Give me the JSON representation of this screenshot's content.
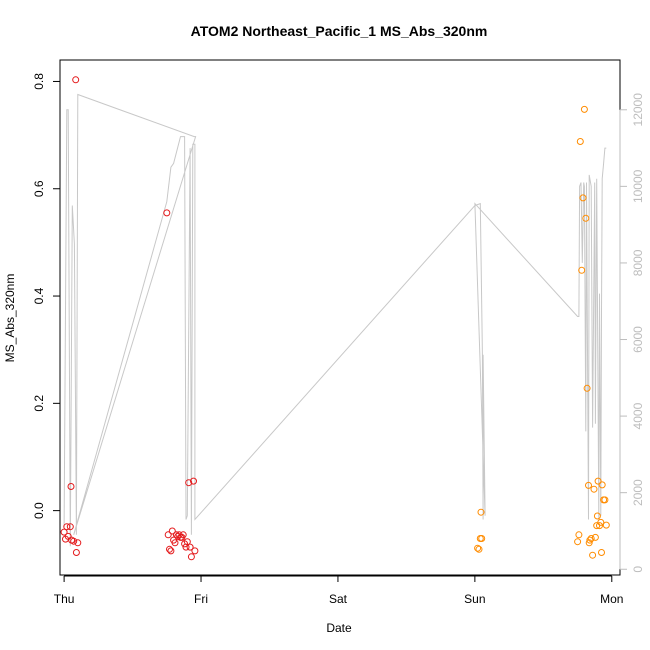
{
  "chart_data": {
    "type": "scatter",
    "title": "ATOM2 Northeast_Pacific_1 MS_Abs_320nm",
    "xlabel": "Date",
    "ylabel": "MS_Abs_320nm",
    "x_unit": "days",
    "xlim": [
      -0.03,
      4.06
    ],
    "ylim": [
      -0.12,
      0.84
    ],
    "y2lim": [
      -150,
      13300
    ],
    "x_ticks": [
      {
        "value": 0,
        "label": "Thu"
      },
      {
        "value": 1,
        "label": "Fri"
      },
      {
        "value": 2,
        "label": "Sat"
      },
      {
        "value": 3,
        "label": "Sun"
      },
      {
        "value": 4,
        "label": "Mon"
      }
    ],
    "y_ticks": [
      {
        "value": 0.0,
        "label": "0.0"
      },
      {
        "value": 0.2,
        "label": "0.2"
      },
      {
        "value": 0.4,
        "label": "0.4"
      },
      {
        "value": 0.6,
        "label": "0.6"
      },
      {
        "value": 0.8,
        "label": "0.8"
      }
    ],
    "y2_ticks": [
      {
        "value": 0,
        "label": "0"
      },
      {
        "value": 2000,
        "label": "2000"
      },
      {
        "value": 4000,
        "label": "4000"
      },
      {
        "value": 6000,
        "label": "6000"
      },
      {
        "value": 8000,
        "label": "8000"
      },
      {
        "value": 10000,
        "label": "10000"
      },
      {
        "value": 12000,
        "label": "12000"
      }
    ],
    "grid": false,
    "colors": {
      "series_1": "#e41a1c",
      "series_2": "#ff8c00",
      "secondary_line": "#c8c8c8"
    },
    "series": [
      {
        "marker": "open-circle",
        "color": "#e41a1c",
        "points": [
          {
            "x": 0.0,
            "y": -0.04
          },
          {
            "x": 0.01,
            "y": -0.053
          },
          {
            "x": 0.02,
            "y": -0.03
          },
          {
            "x": 0.03,
            "y": -0.048
          },
          {
            "x": 0.045,
            "y": -0.03
          },
          {
            "x": 0.05,
            "y": 0.045
          },
          {
            "x": 0.055,
            "y": -0.055
          },
          {
            "x": 0.07,
            "y": -0.057
          },
          {
            "x": 0.085,
            "y": 0.803
          },
          {
            "x": 0.09,
            "y": -0.078
          },
          {
            "x": 0.1,
            "y": -0.06
          },
          {
            "x": 0.75,
            "y": 0.555
          },
          {
            "x": 0.76,
            "y": -0.045
          },
          {
            "x": 0.77,
            "y": -0.072
          },
          {
            "x": 0.78,
            "y": -0.075
          },
          {
            "x": 0.79,
            "y": -0.038
          },
          {
            "x": 0.8,
            "y": -0.055
          },
          {
            "x": 0.81,
            "y": -0.06
          },
          {
            "x": 0.82,
            "y": -0.045
          },
          {
            "x": 0.83,
            "y": -0.048
          },
          {
            "x": 0.84,
            "y": -0.045
          },
          {
            "x": 0.85,
            "y": -0.05
          },
          {
            "x": 0.86,
            "y": -0.05
          },
          {
            "x": 0.87,
            "y": -0.045
          },
          {
            "x": 0.88,
            "y": -0.062
          },
          {
            "x": 0.89,
            "y": -0.068
          },
          {
            "x": 0.9,
            "y": -0.058
          },
          {
            "x": 0.91,
            "y": 0.052
          },
          {
            "x": 0.92,
            "y": -0.068
          },
          {
            "x": 0.93,
            "y": -0.086
          },
          {
            "x": 0.945,
            "y": 0.055
          },
          {
            "x": 0.955,
            "y": -0.075
          }
        ]
      },
      {
        "marker": "open-circle",
        "color": "#ff8c00",
        "points": [
          {
            "x": 3.02,
            "y": -0.07
          },
          {
            "x": 3.03,
            "y": -0.072
          },
          {
            "x": 3.04,
            "y": -0.052
          },
          {
            "x": 3.05,
            "y": -0.052
          },
          {
            "x": 3.045,
            "y": -0.003
          },
          {
            "x": 3.75,
            "y": -0.058
          },
          {
            "x": 3.76,
            "y": -0.045
          },
          {
            "x": 3.77,
            "y": 0.688
          },
          {
            "x": 3.78,
            "y": 0.448
          },
          {
            "x": 3.79,
            "y": 0.583
          },
          {
            "x": 3.8,
            "y": 0.748
          },
          {
            "x": 3.81,
            "y": 0.545
          },
          {
            "x": 3.82,
            "y": 0.228
          },
          {
            "x": 3.83,
            "y": 0.047
          },
          {
            "x": 3.835,
            "y": -0.06
          },
          {
            "x": 3.84,
            "y": -0.055
          },
          {
            "x": 3.85,
            "y": -0.052
          },
          {
            "x": 3.86,
            "y": -0.083
          },
          {
            "x": 3.87,
            "y": 0.04
          },
          {
            "x": 3.88,
            "y": -0.05
          },
          {
            "x": 3.89,
            "y": -0.028
          },
          {
            "x": 3.895,
            "y": -0.01
          },
          {
            "x": 3.9,
            "y": 0.055
          },
          {
            "x": 3.91,
            "y": -0.028
          },
          {
            "x": 3.92,
            "y": -0.022
          },
          {
            "x": 3.925,
            "y": -0.078
          },
          {
            "x": 3.93,
            "y": 0.048
          },
          {
            "x": 3.94,
            "y": 0.02
          },
          {
            "x": 3.95,
            "y": 0.02
          },
          {
            "x": 3.96,
            "y": -0.027
          }
        ]
      }
    ],
    "secondary_line": {
      "axis": "right",
      "color": "#c8c8c8",
      "points": [
        [
          0.0,
          1100
        ],
        [
          0.02,
          12000
        ],
        [
          0.03,
          12000
        ],
        [
          0.045,
          600
        ],
        [
          0.06,
          9500
        ],
        [
          0.075,
          8500
        ],
        [
          0.09,
          900
        ],
        [
          0.1,
          12400
        ],
        [
          0.95,
          11300
        ],
        [
          0.96,
          11300
        ],
        [
          0.07,
          900
        ],
        [
          0.75,
          9600
        ],
        [
          0.78,
          10500
        ],
        [
          0.8,
          10600
        ],
        [
          0.85,
          11300
        ],
        [
          0.88,
          11300
        ],
        [
          0.89,
          1300
        ],
        [
          0.9,
          1400
        ],
        [
          0.92,
          11000
        ],
        [
          0.93,
          900
        ],
        [
          0.94,
          11100
        ],
        [
          0.955,
          11100
        ],
        [
          0.955,
          1300
        ],
        [
          3.0,
          9500
        ],
        [
          3.04,
          9550
        ],
        [
          3.055,
          5600
        ],
        [
          3.06,
          1300
        ],
        [
          3.06,
          5600
        ],
        [
          3.075,
          1400
        ],
        [
          3.0,
          9550
        ],
        [
          3.75,
          6600
        ],
        [
          3.76,
          6600
        ],
        [
          3.765,
          10000
        ],
        [
          3.775,
          10100
        ],
        [
          3.785,
          8000
        ],
        [
          3.795,
          10100
        ],
        [
          3.8,
          10000
        ],
        [
          3.81,
          3600
        ],
        [
          3.815,
          10100
        ],
        [
          3.83,
          1300
        ],
        [
          3.835,
          10300
        ],
        [
          3.85,
          10000
        ],
        [
          3.86,
          3700
        ],
        [
          3.875,
          10100
        ],
        [
          3.88,
          3800
        ],
        [
          3.89,
          10200
        ],
        [
          3.905,
          1300
        ],
        [
          3.91,
          7200
        ],
        [
          3.92,
          1400
        ],
        [
          3.925,
          6700
        ],
        [
          3.93,
          10200
        ],
        [
          3.94,
          10600
        ],
        [
          3.95,
          11000
        ],
        [
          3.96,
          11000
        ]
      ]
    }
  }
}
